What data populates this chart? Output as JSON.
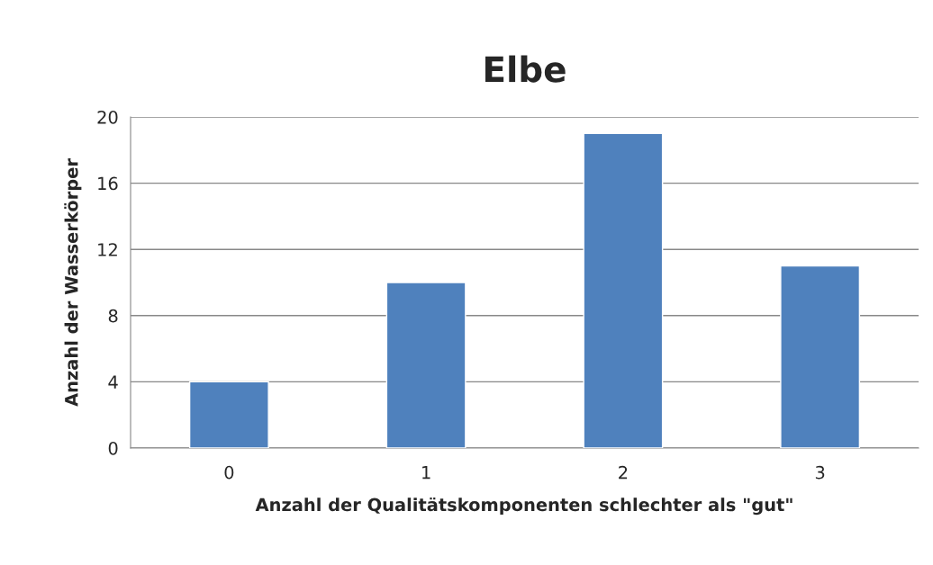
{
  "chart_data": {
    "type": "bar",
    "title": "Elbe",
    "xlabel": "Anzahl der Qualitätskomponenten schlechter als \"gut\"",
    "ylabel": "Anzahl der Wasserkörper",
    "categories": [
      "0",
      "1",
      "2",
      "3"
    ],
    "values": [
      4,
      10,
      19,
      11
    ],
    "color": "#4f81bd",
    "ylim": [
      0,
      20
    ],
    "yticks": [
      0,
      4,
      8,
      12,
      16,
      20
    ],
    "grid": "y"
  }
}
